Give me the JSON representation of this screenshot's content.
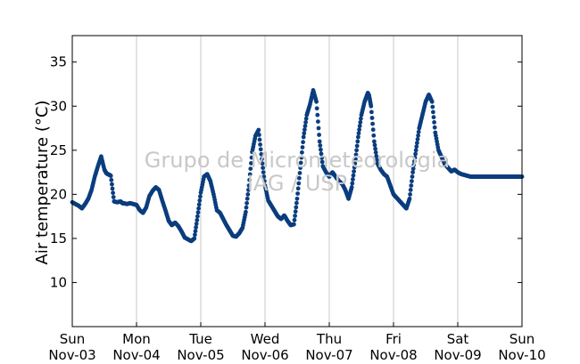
{
  "chart_data": {
    "type": "scatter",
    "title": "",
    "xlabel": "",
    "ylabel": "Air temperature (°C)",
    "ylim": [
      5,
      38
    ],
    "xlim": [
      0,
      7
    ],
    "grid": "vertical",
    "yticks": [
      "10",
      "15",
      "20",
      "25",
      "30",
      "35"
    ],
    "ytick_values": [
      10,
      15,
      20,
      25,
      30,
      35
    ],
    "xticks": [
      {
        "day": "Sun",
        "date": "Nov-03"
      },
      {
        "day": "Mon",
        "date": "Nov-04"
      },
      {
        "day": "Tue",
        "date": "Nov-05"
      },
      {
        "day": "Wed",
        "date": "Nov-06"
      },
      {
        "day": "Thu",
        "date": "Nov-07"
      },
      {
        "day": "Fri",
        "date": "Nov-08"
      },
      {
        "day": "Sat",
        "date": "Nov-09"
      },
      {
        "day": "Sun",
        "date": "Nov-10"
      }
    ],
    "watermark": [
      "Grupo de Micrometeorologia",
      "IAG / USP"
    ],
    "marker_color": "#0a3d7e",
    "series": [
      {
        "x_days_since_nov03": [
          0.0,
          0.05,
          0.1,
          0.15,
          0.2,
          0.25,
          0.3,
          0.35,
          0.4,
          0.45,
          0.5,
          0.53,
          0.55,
          0.58,
          0.6,
          0.65,
          0.7,
          0.75,
          0.78,
          0.8,
          0.85,
          0.9,
          0.95,
          1.0,
          1.05,
          1.1,
          1.15,
          1.2,
          1.25,
          1.3,
          1.35,
          1.4,
          1.45,
          1.5,
          1.55,
          1.6,
          1.65,
          1.7,
          1.75,
          1.8,
          1.85,
          1.9,
          1.95,
          2.0,
          2.05,
          2.1,
          2.15,
          2.2,
          2.25,
          2.3,
          2.35,
          2.4,
          2.45,
          2.5,
          2.55,
          2.6,
          2.65,
          2.7,
          2.75,
          2.8,
          2.85,
          2.9,
          2.95,
          3.0,
          3.05,
          3.1,
          3.15,
          3.2,
          3.25,
          3.3,
          3.35,
          3.4,
          3.45,
          3.5,
          3.55,
          3.6,
          3.65,
          3.7,
          3.75,
          3.8,
          3.85,
          3.9,
          3.95,
          4.0,
          4.05,
          4.1,
          4.15,
          4.2,
          4.25,
          4.3,
          4.35,
          4.4,
          4.45,
          4.5,
          4.55,
          4.6,
          4.62,
          4.65,
          4.7,
          4.75,
          4.8,
          4.85,
          4.9,
          4.95,
          5.0,
          5.05,
          5.1,
          5.15,
          5.2,
          5.25,
          5.3,
          5.35,
          5.4,
          5.45,
          5.5,
          5.55,
          5.6,
          5.65,
          5.7,
          5.75,
          5.8,
          5.85,
          5.9,
          5.95,
          6.0,
          6.05,
          6.1,
          6.15,
          6.2,
          6.25,
          6.3,
          6.35,
          6.4,
          6.45,
          6.5,
          6.55,
          6.6,
          6.65,
          6.7,
          6.75,
          6.8,
          6.85,
          6.9,
          6.95,
          7.0
        ],
        "y": [
          19.1,
          18.9,
          18.7,
          18.4,
          18.9,
          19.5,
          20.5,
          22.0,
          23.2,
          24.3,
          22.8,
          22.4,
          22.3,
          22.2,
          22.1,
          19.2,
          19.1,
          19.2,
          19.0,
          19.0,
          18.9,
          19.0,
          18.9,
          18.8,
          18.2,
          17.9,
          18.5,
          19.8,
          20.4,
          20.8,
          20.5,
          19.3,
          18.2,
          17.0,
          16.5,
          16.8,
          16.4,
          15.8,
          15.1,
          14.9,
          14.7,
          15.0,
          17.5,
          20.2,
          22.0,
          22.3,
          21.5,
          20.0,
          18.2,
          17.9,
          17.2,
          16.5,
          15.9,
          15.3,
          15.2,
          15.6,
          16.2,
          18.0,
          21.0,
          24.8,
          26.6,
          27.3,
          24.0,
          21.0,
          19.3,
          18.7,
          18.1,
          17.5,
          17.2,
          17.6,
          17.0,
          16.5,
          16.6,
          19.5,
          23.0,
          26.5,
          29.0,
          30.2,
          31.8,
          30.5,
          26.0,
          23.2,
          22.5,
          22.0,
          22.5,
          22.0,
          21.5,
          21.2,
          20.5,
          19.5,
          20.8,
          23.5,
          26.5,
          29.0,
          30.5,
          31.5,
          31.2,
          30.0,
          26.0,
          23.5,
          22.8,
          22.3,
          22.0,
          21.0,
          20.0,
          19.6,
          19.2,
          18.8,
          18.4,
          19.5,
          22.5,
          25.0,
          27.5,
          29.0,
          30.5,
          31.3,
          30.5,
          27.0,
          25.0,
          24.2,
          23.4,
          23.0,
          22.6,
          22.8,
          22.5,
          22.3,
          22.2,
          22.1,
          22.0,
          22.0,
          22.0,
          22.0,
          22.0,
          22.0,
          22.0,
          22.0,
          22.0,
          22.0,
          22.0,
          22.0,
          22.0,
          22.0,
          22.0,
          22.0,
          22.0
        ]
      }
    ]
  }
}
